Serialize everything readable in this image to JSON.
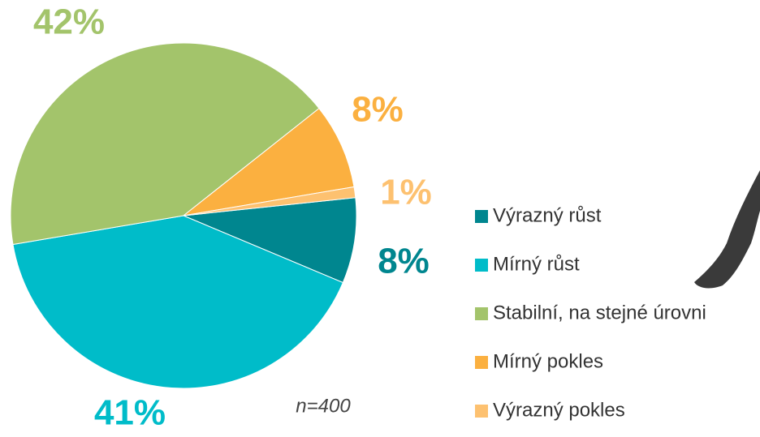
{
  "chart_data": {
    "type": "pie",
    "categories": [
      "Výrazný růst",
      "Mírný růst",
      "Stabilní, na stejné úrovni",
      "Mírný pokles",
      "Výrazný pokles"
    ],
    "values": [
      8,
      41,
      42,
      8,
      1
    ],
    "value_labels": [
      "8%",
      "41%",
      "42%",
      "8%",
      "1%"
    ],
    "colors": [
      "#00868f",
      "#00bcc9",
      "#a3c46b",
      "#fbb040",
      "#fdc170"
    ],
    "annotation": "n=400",
    "legend": "right"
  }
}
